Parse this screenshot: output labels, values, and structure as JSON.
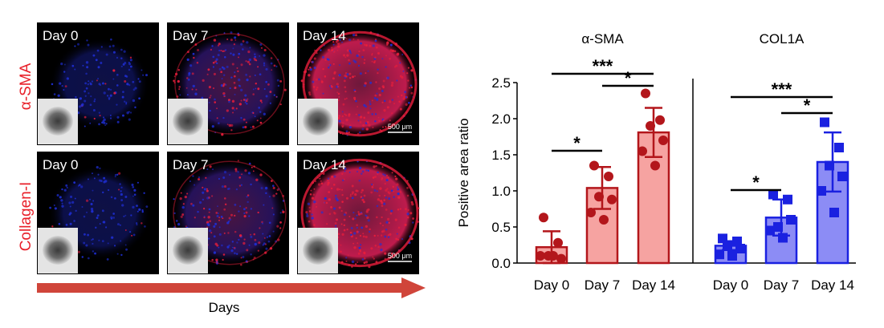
{
  "micrographs": {
    "rows": [
      {
        "label": "α-SMA",
        "panels": [
          "Day 0",
          "Day 7",
          "Day 14"
        ]
      },
      {
        "label": "Collagen-I",
        "panels": [
          "Day 0",
          "Day 7",
          "Day 14"
        ]
      }
    ],
    "scale_bar": "500 μm",
    "arrow_label": "Days",
    "colors": {
      "stain": "#e81e3c",
      "nuclei": "#1f2fd6",
      "arrow": "#d0453a"
    }
  },
  "chart_data": {
    "type": "bar",
    "ylabel": "Positive area ratio",
    "ylim": [
      0,
      2.5
    ],
    "yticks": [
      "0.0",
      "0.5",
      "1.0",
      "1.5",
      "2.0",
      "2.5"
    ],
    "categories": [
      "Day 0",
      "Day 7",
      "Day 14"
    ],
    "groups": [
      {
        "title": "α-SMA",
        "marker": "circle",
        "color": "#b3161b",
        "fill": "#f6a3a1",
        "values": [
          0.22,
          1.04,
          1.81
        ],
        "errors": [
          0.22,
          0.29,
          0.34
        ],
        "points": [
          [
            0.63,
            0.28,
            0.1,
            0.06,
            0.1,
            0.1
          ],
          [
            1.35,
            1.2,
            0.92,
            0.88,
            0.7,
            0.6
          ],
          [
            2.35,
            1.98,
            1.9,
            1.7,
            1.55,
            1.35
          ]
        ],
        "significance": [
          {
            "from": 0,
            "to": 1,
            "label": "*"
          },
          {
            "from": 1,
            "to": 2,
            "label": "*"
          },
          {
            "from": 0,
            "to": 2,
            "label": "***"
          }
        ]
      },
      {
        "title": "COL1A",
        "marker": "square",
        "color": "#1a21e0",
        "fill": "#8c8cf5",
        "values": [
          0.24,
          0.63,
          1.4
        ],
        "errors": [
          0.06,
          0.25,
          0.41
        ],
        "points": [
          [
            0.34,
            0.3,
            0.25,
            0.2,
            0.12,
            0.1
          ],
          [
            0.95,
            0.88,
            0.5,
            0.6,
            0.45,
            0.35
          ],
          [
            1.95,
            1.6,
            1.35,
            1.2,
            1.0,
            0.7
          ]
        ],
        "significance": [
          {
            "from": 0,
            "to": 1,
            "label": "*"
          },
          {
            "from": 1,
            "to": 2,
            "label": "*"
          },
          {
            "from": 0,
            "to": 2,
            "label": "***"
          }
        ]
      }
    ]
  }
}
